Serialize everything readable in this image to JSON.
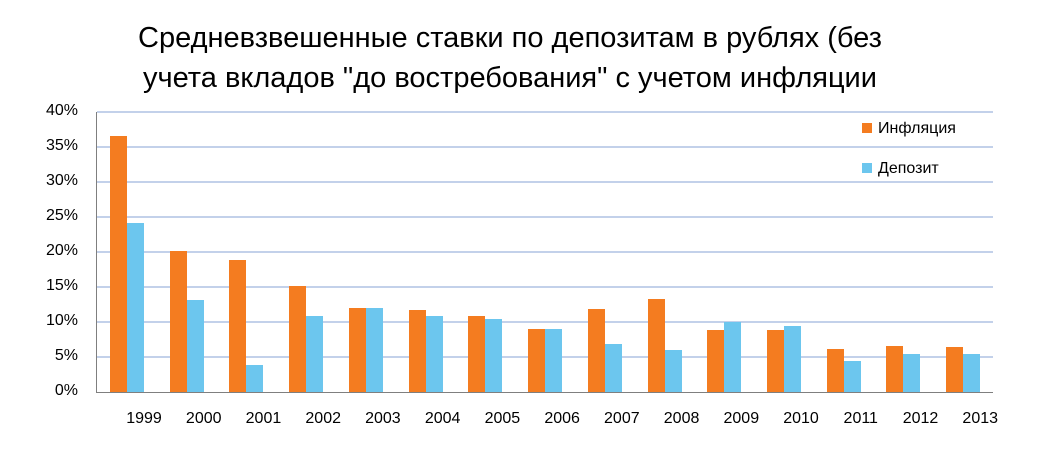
{
  "title_line1": "Средневзвешенные ставки по депозитам в рублях (без",
  "title_line2": "учета вкладов \"до востребования\" с учетом инфляции",
  "legend": [
    {
      "label": "Инфляция",
      "color": "#f47c20"
    },
    {
      "label": "Депозит",
      "color": "#6cc6ee"
    }
  ],
  "y_ticks": [
    "0%",
    "5%",
    "10%",
    "15%",
    "20%",
    "25%",
    "30%",
    "35%",
    "40%"
  ],
  "chart_data": {
    "type": "bar",
    "title": "Средневзвешенные ставки по депозитам в рублях (без учета вкладов \"до востребования\" с учетом инфляции",
    "categories": [
      "1999",
      "2000",
      "2001",
      "2002",
      "2003",
      "2004",
      "2005",
      "2006",
      "2007",
      "2008",
      "2009",
      "2010",
      "2011",
      "2012",
      "2013"
    ],
    "series": [
      {
        "name": "Инфляция",
        "color": "#f47c20",
        "values": [
          36.6,
          20.1,
          18.8,
          15.1,
          12.0,
          11.7,
          10.9,
          9.0,
          11.9,
          13.3,
          8.8,
          8.8,
          6.1,
          6.6,
          6.5
        ]
      },
      {
        "name": "Депозит",
        "color": "#6cc6ee",
        "values": [
          24.2,
          13.1,
          3.9,
          10.9,
          12.0,
          10.9,
          10.5,
          9.0,
          6.8,
          6.0,
          10.0,
          9.5,
          4.4,
          5.5,
          5.5
        ]
      }
    ],
    "xlabel": "",
    "ylabel": "",
    "ylim": [
      0,
      40
    ],
    "grid": true,
    "legend_position": "top-right"
  }
}
